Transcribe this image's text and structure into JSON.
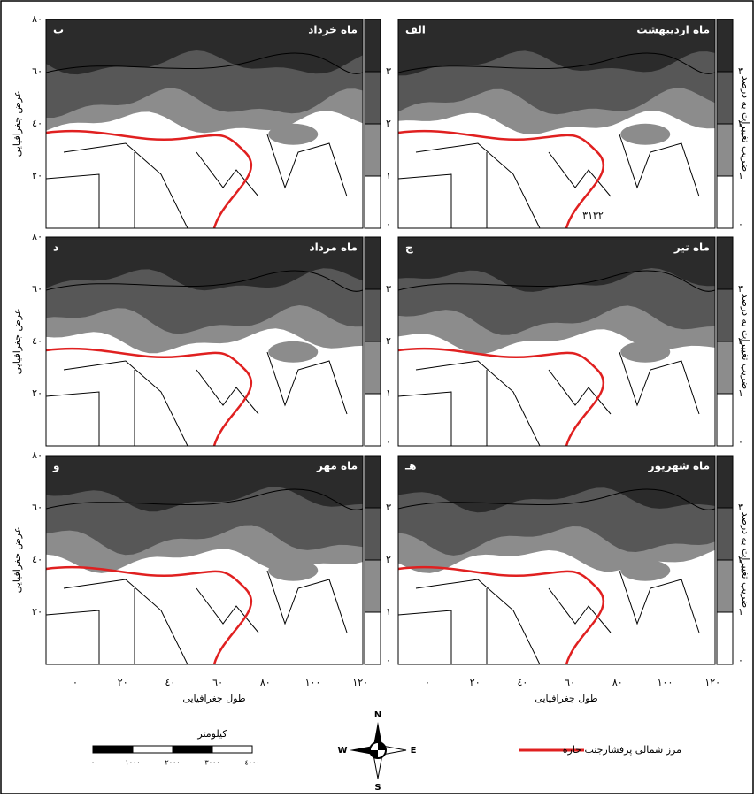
{
  "panels": [
    {
      "title": "ماه خرداد",
      "letter": "ب"
    },
    {
      "title": "ماه اردیبهشت",
      "letter": "الف"
    },
    {
      "title": "ماه مرداد",
      "letter": "د"
    },
    {
      "title": "ماه تیر",
      "letter": "ج"
    },
    {
      "title": "ماه مهر",
      "letter": "و"
    },
    {
      "title": "ماه شهریور",
      "letter": "هـ"
    }
  ],
  "contour_label": "٣١٣٢",
  "y_axis": {
    "title": "عرض جغرافیایی",
    "ticks": [
      "٨٠",
      "٦٠",
      "٤٠",
      "٢٠"
    ]
  },
  "x_axis": {
    "title": "طول جغرافیایی",
    "ticks": [
      "٠",
      "٢٠",
      "٤٠",
      "٦٠",
      "٨٠",
      "١٠٠",
      "١٢٠"
    ]
  },
  "colorbar": {
    "title": "ضریب تغییرات به درصد",
    "ticks": [
      "٣",
      "٢",
      "١",
      "٠"
    ]
  },
  "legend": {
    "label": "مرز شمالی پرفشارجنب حاره"
  },
  "scale_bar": {
    "title": "کیلومتر",
    "ticks": [
      "٠",
      "١٠٠٠",
      "٢٠٠٠",
      "٣٠٠٠",
      "٤٠٠٠"
    ]
  },
  "compass": {
    "n": "N",
    "e": "E",
    "s": "S",
    "w": "W"
  }
}
